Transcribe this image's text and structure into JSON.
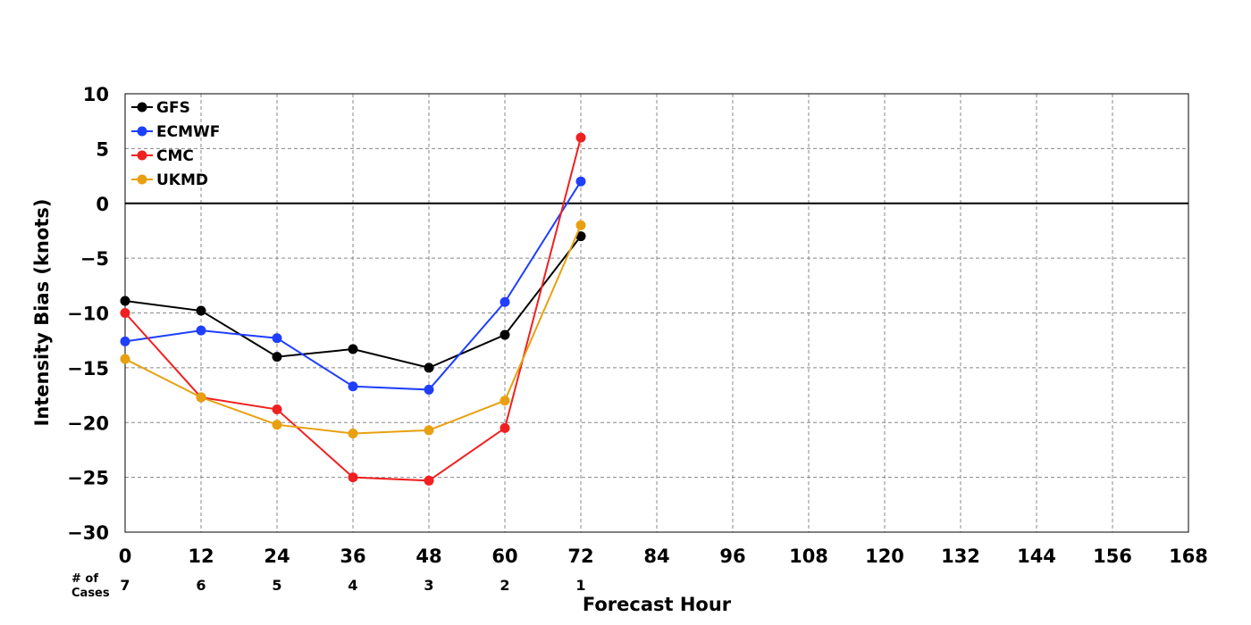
{
  "chart_data": {
    "type": "line",
    "xlabel": "Forecast Hour",
    "ylabel": "Intensity Bias (knots)",
    "xlim": [
      0,
      168
    ],
    "ylim": [
      -30,
      10
    ],
    "xticks": [
      0,
      12,
      24,
      36,
      48,
      60,
      72,
      84,
      96,
      108,
      120,
      132,
      144,
      156,
      168
    ],
    "yticks": [
      10,
      5,
      0,
      -5,
      -10,
      -15,
      -20,
      -25,
      -30
    ],
    "ytick_labels": [
      "10",
      "5",
      "0",
      "−5",
      "−10",
      "−15",
      "−20",
      "−25",
      "−30"
    ],
    "grid": true,
    "legend_position": "top-left",
    "cases_header": [
      "# of",
      "Cases"
    ],
    "cases": [
      {
        "x": 0,
        "n": "7"
      },
      {
        "x": 12,
        "n": "6"
      },
      {
        "x": 24,
        "n": "5"
      },
      {
        "x": 36,
        "n": "4"
      },
      {
        "x": 48,
        "n": "3"
      },
      {
        "x": 60,
        "n": "2"
      },
      {
        "x": 72,
        "n": "1"
      }
    ],
    "x": [
      0,
      12,
      24,
      36,
      48,
      60,
      72
    ],
    "series": [
      {
        "name": "GFS",
        "color": "#000000",
        "values": [
          -8.9,
          -9.8,
          -14,
          -13.3,
          -15,
          -12,
          -3
        ]
      },
      {
        "name": "ECMWF",
        "color": "#1f3fff",
        "values": [
          -12.6,
          -11.6,
          -12.3,
          -16.7,
          -17,
          -9,
          2
        ]
      },
      {
        "name": "CMC",
        "color": "#f02020",
        "values": [
          -10,
          -17.7,
          -18.8,
          -25,
          -25.3,
          -20.5,
          6
        ]
      },
      {
        "name": "UKMD",
        "color": "#e8a010",
        "values": [
          -14.2,
          -17.7,
          -20.2,
          -21,
          -20.7,
          -18,
          -2
        ]
      }
    ]
  }
}
